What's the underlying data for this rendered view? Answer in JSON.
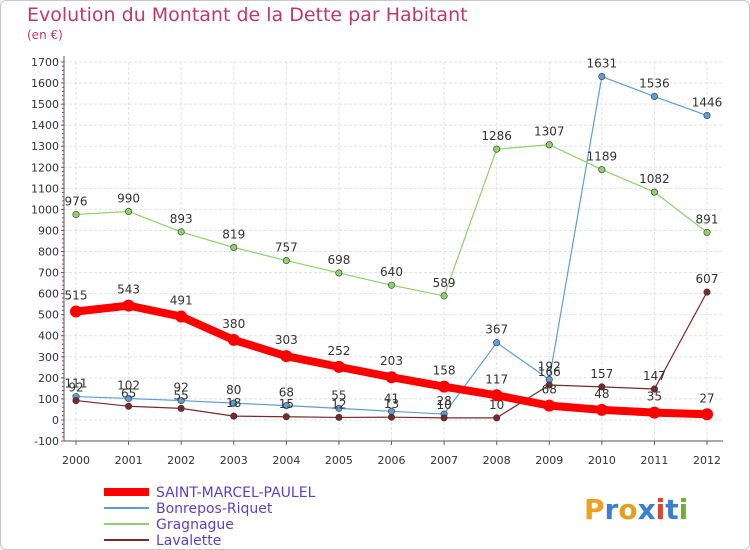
{
  "chart_data": {
    "type": "line",
    "title": "Evolution du Montant de la Dette par Habitant",
    "subtitle": "(en €)",
    "xlabel": "",
    "ylabel": "",
    "ylim": [
      -100,
      1700
    ],
    "y_ticks": [
      "-100",
      "0",
      "100",
      "200",
      "300",
      "400",
      "500",
      "600",
      "700",
      "800",
      "900",
      "1000",
      "1100",
      "1200",
      "1300",
      "1400",
      "1500",
      "1600",
      "1700"
    ],
    "categories": [
      "2000",
      "2001",
      "2002",
      "2003",
      "2004",
      "2005",
      "2006",
      "2007",
      "2008",
      "2009",
      "2010",
      "2011",
      "2012"
    ],
    "grid": true,
    "legend_position": "bottom-left",
    "series": [
      {
        "name": "SAINT-MARCEL-PAULEL",
        "color": "#ff0000",
        "values": [
          515,
          543,
          491,
          380,
          303,
          252,
          203,
          158,
          117,
          68,
          48,
          35,
          27
        ]
      },
      {
        "name": "Bonrepos-Riquet",
        "color": "#5c9fd6",
        "values": [
          111,
          102,
          92,
          80,
          68,
          55,
          41,
          28,
          367,
          192,
          1631,
          1536,
          1446
        ]
      },
      {
        "name": "Gragnague",
        "color": "#8fd16a",
        "values": [
          976,
          990,
          893,
          819,
          757,
          698,
          640,
          589,
          1286,
          1307,
          1189,
          1082,
          891
        ]
      },
      {
        "name": "Lavalette",
        "color": "#7a2a2a",
        "values": [
          92,
          65,
          55,
          18,
          15,
          12,
          13,
          10,
          10,
          166,
          157,
          147,
          607
        ]
      }
    ]
  },
  "brand": {
    "logo_text": "Proxiti"
  }
}
